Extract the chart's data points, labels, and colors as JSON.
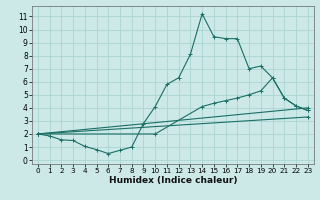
{
  "title": "",
  "xlabel": "Humidex (Indice chaleur)",
  "background_color": "#cce9e8",
  "grid_color": "#aad4d2",
  "line_color": "#1a6e65",
  "x_ticks": [
    0,
    1,
    2,
    3,
    4,
    5,
    6,
    7,
    8,
    9,
    10,
    11,
    12,
    13,
    14,
    15,
    16,
    17,
    18,
    19,
    20,
    21,
    22,
    23
  ],
  "y_ticks": [
    0,
    1,
    2,
    3,
    4,
    5,
    6,
    7,
    8,
    9,
    10,
    11
  ],
  "xlim": [
    -0.5,
    23.5
  ],
  "ylim": [
    -0.3,
    11.8
  ],
  "curves": [
    {
      "x": [
        0,
        1,
        2,
        3,
        4,
        5,
        6,
        7,
        8,
        9,
        10,
        11,
        12,
        13,
        14,
        15,
        16,
        17,
        18,
        19,
        20,
        21,
        22,
        23
      ],
      "y": [
        2.0,
        1.85,
        1.55,
        1.5,
        1.05,
        0.8,
        0.5,
        0.75,
        1.0,
        2.8,
        4.1,
        5.8,
        6.3,
        8.1,
        11.2,
        9.45,
        9.3,
        9.3,
        7.0,
        7.2,
        6.3,
        4.75,
        4.15,
        3.8
      ]
    },
    {
      "x": [
        0,
        10,
        14,
        15,
        16,
        17,
        18,
        19,
        20,
        21,
        22,
        23
      ],
      "y": [
        2.0,
        2.0,
        4.1,
        4.35,
        4.55,
        4.75,
        5.0,
        5.3,
        6.3,
        4.75,
        4.15,
        3.8
      ]
    },
    {
      "x": [
        0,
        23
      ],
      "y": [
        2.0,
        4.0
      ]
    },
    {
      "x": [
        0,
        23
      ],
      "y": [
        2.0,
        3.3
      ]
    }
  ]
}
